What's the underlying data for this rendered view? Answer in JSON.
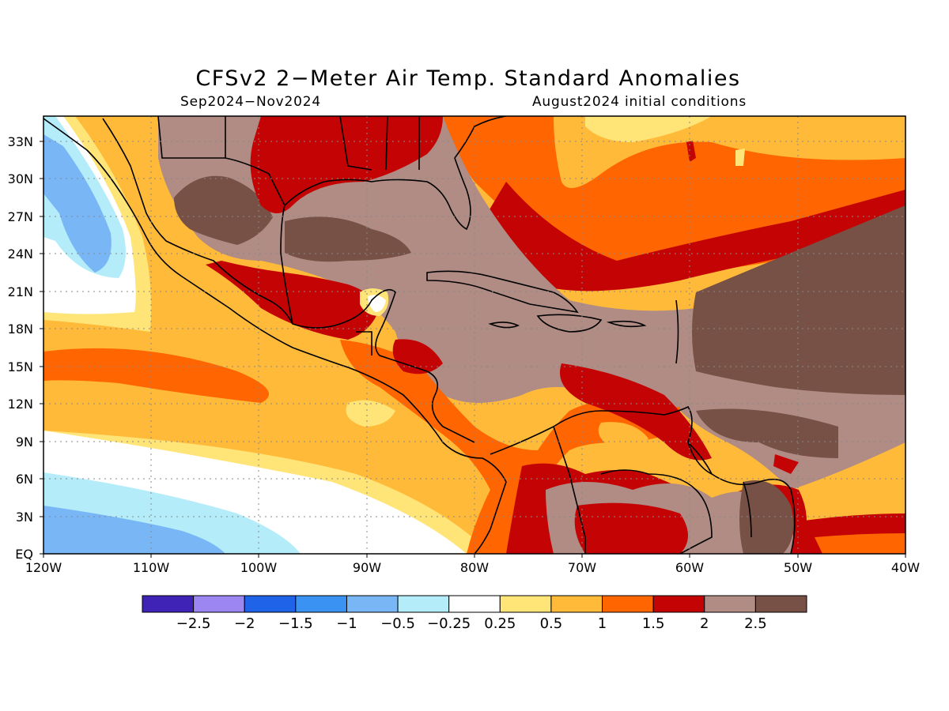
{
  "title": "CFSv2 2−Meter Air Temp. Standard Anomalies",
  "subtitle_left": "Sep2024−Nov2024",
  "subtitle_right": "August2024 initial conditions",
  "lat_labels": [
    "33N",
    "30N",
    "27N",
    "24N",
    "21N",
    "18N",
    "15N",
    "12N",
    "9N",
    "6N",
    "3N",
    "EQ"
  ],
  "lon_labels": [
    "120W",
    "110W",
    "100W",
    "90W",
    "80W",
    "70W",
    "60W",
    "50W",
    "40W"
  ],
  "colorbar": {
    "colors": [
      "#3f22b6",
      "#9b86f2",
      "#1f63e8",
      "#3a92f2",
      "#78b6f6",
      "#b4ecfa",
      "#ffffff",
      "#ffe578",
      "#ffba3a",
      "#ff6500",
      "#c40404",
      "#b08c84",
      "#775046"
    ],
    "labels": [
      "−2.5",
      "−2",
      "−1.5",
      "−1",
      "−0.5",
      "−0.25",
      "0.25",
      "0.5",
      "1",
      "1.5",
      "2",
      "2.5"
    ]
  }
}
